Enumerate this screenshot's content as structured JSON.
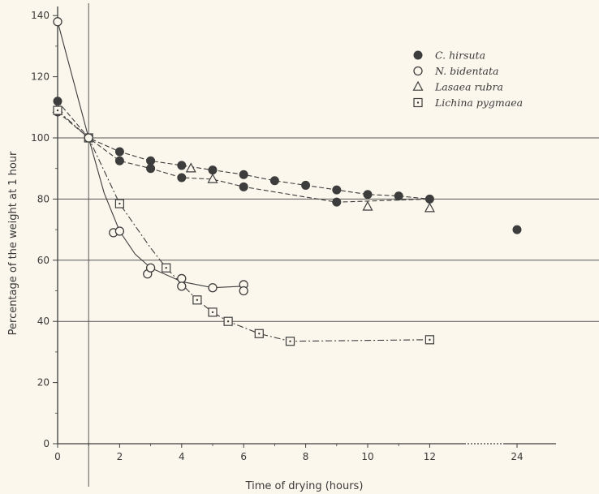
{
  "chart_data": {
    "type": "scatter",
    "xlabel": "Time of drying (hours)",
    "ylabel": "Percentage of the weight at 1 hour",
    "ylim": [
      0,
      140
    ],
    "yticks": [
      "0",
      "20",
      "40",
      "60",
      "80",
      "100",
      "120",
      "140"
    ],
    "xticks": [
      "0",
      "2",
      "4",
      "6",
      "8",
      "10",
      "12",
      "24"
    ],
    "grid": "horizontal lines at 40, 60, 80, 100; vertical line at 1 hour",
    "legend_position": "top-right",
    "series": [
      {
        "name": "C. hirsuta",
        "marker": "filled-circle",
        "points": [
          {
            "x": 0,
            "y": 112
          },
          {
            "x": 1,
            "y": 100
          },
          {
            "x": 2,
            "y": 95.5
          },
          {
            "x": 3,
            "y": 92.5
          },
          {
            "x": 4,
            "y": 91
          },
          {
            "x": 5,
            "y": 89.5
          },
          {
            "x": 6,
            "y": 88
          },
          {
            "x": 7,
            "y": 86
          },
          {
            "x": 8,
            "y": 84.5
          },
          {
            "x": 9,
            "y": 83
          },
          {
            "x": 10,
            "y": 81.5
          },
          {
            "x": 11,
            "y": 81
          },
          {
            "x": 12,
            "y": 80
          },
          {
            "x": 24,
            "y": 70
          },
          {
            "x": 0,
            "y": 108.5
          },
          {
            "x": 2,
            "y": 92.5
          },
          {
            "x": 3,
            "y": 90
          },
          {
            "x": 4,
            "y": 87
          },
          {
            "x": 6,
            "y": 84
          },
          {
            "x": 9,
            "y": 79
          }
        ]
      },
      {
        "name": "N. bidentata",
        "marker": "open-circle",
        "points": [
          {
            "x": 0,
            "y": 138
          },
          {
            "x": 1,
            "y": 100
          },
          {
            "x": 1.8,
            "y": 69
          },
          {
            "x": 2,
            "y": 69.5
          },
          {
            "x": 2.9,
            "y": 55.5
          },
          {
            "x": 3,
            "y": 57.5
          },
          {
            "x": 4,
            "y": 54
          },
          {
            "x": 4,
            "y": 51.5
          },
          {
            "x": 5,
            "y": 51
          },
          {
            "x": 6,
            "y": 52
          },
          {
            "x": 6,
            "y": 50
          }
        ]
      },
      {
        "name": "Lasaea rubra",
        "marker": "open-triangle",
        "points": [
          {
            "x": 0,
            "y": 109.5
          },
          {
            "x": 4.3,
            "y": 90
          },
          {
            "x": 5,
            "y": 86.5
          },
          {
            "x": 10,
            "y": 77.5
          },
          {
            "x": 12,
            "y": 77
          }
        ]
      },
      {
        "name": "Lichina pygmaea",
        "marker": "open-square",
        "points": [
          {
            "x": 0,
            "y": 109
          },
          {
            "x": 1,
            "y": 100
          },
          {
            "x": 2,
            "y": 78.5
          },
          {
            "x": 3.5,
            "y": 57.5
          },
          {
            "x": 4.5,
            "y": 47
          },
          {
            "x": 5,
            "y": 43
          },
          {
            "x": 5.5,
            "y": 40
          },
          {
            "x": 6.5,
            "y": 36
          },
          {
            "x": 7.5,
            "y": 33.5
          },
          {
            "x": 12,
            "y": 34
          }
        ]
      }
    ]
  }
}
